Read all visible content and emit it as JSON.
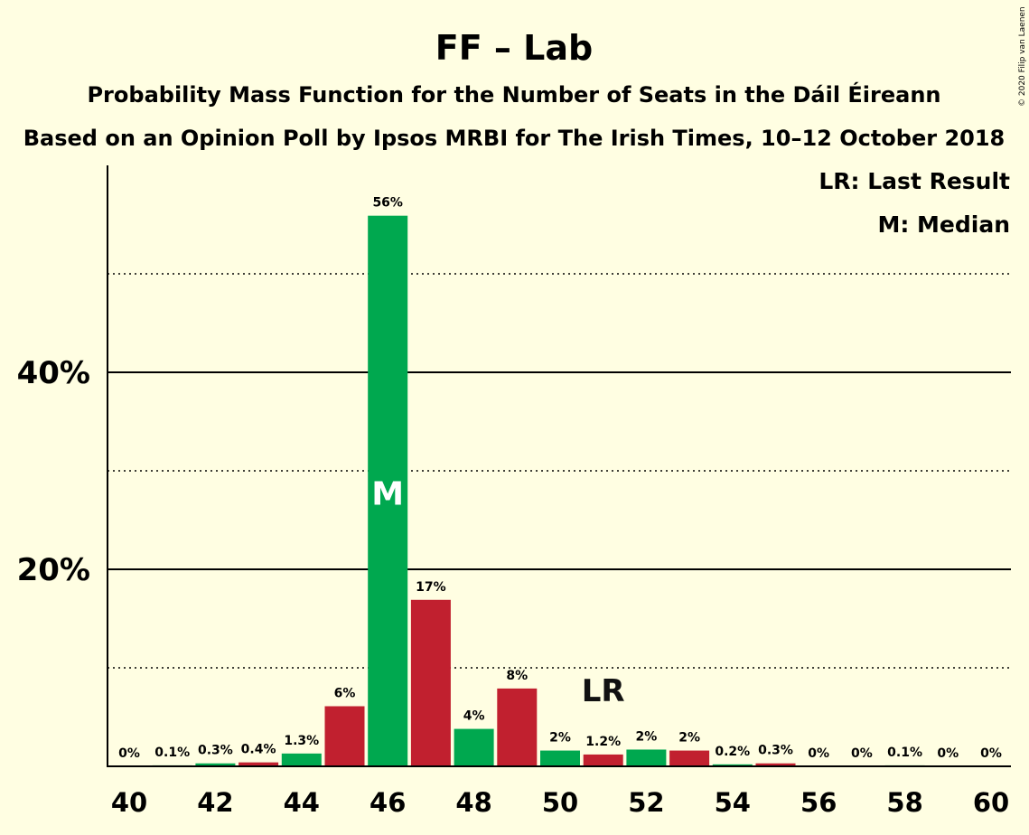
{
  "colors": {
    "background": "#FFFEE2",
    "green": "#00A84F",
    "red": "#C1202F",
    "axis": "#000000"
  },
  "header": {
    "title": "FF – Lab",
    "subtitle1": "Probability Mass Function for the Number of Seats in the Dáil Éireann",
    "subtitle2": "Based on an Opinion Poll by Ipsos MRBI for The Irish Times, 10–12 October 2018"
  },
  "legend": {
    "last_result": "LR: Last Result",
    "median": "M: Median"
  },
  "copyright": "© 2020 Filip van Laenen",
  "chart_data": {
    "type": "bar",
    "x": [
      40,
      41,
      42,
      43,
      44,
      45,
      46,
      47,
      48,
      49,
      50,
      51,
      52,
      53,
      54,
      55,
      56,
      57,
      58,
      59,
      60
    ],
    "values": [
      0,
      0.1,
      0.3,
      0.4,
      1.3,
      6,
      56,
      17,
      4,
      8,
      2,
      1.2,
      2,
      2,
      0.2,
      0.3,
      0,
      0,
      0.1,
      0,
      0
    ],
    "plot_values": [
      0,
      0.1,
      0.3,
      0.4,
      1.3,
      6.1,
      55.9,
      16.9,
      3.8,
      7.9,
      1.6,
      1.2,
      1.7,
      1.6,
      0.2,
      0.3,
      0,
      0,
      0.1,
      0,
      0
    ],
    "labels": [
      "0%",
      "0.1%",
      "0.3%",
      "0.4%",
      "1.3%",
      "6%",
      "56%",
      "17%",
      "4%",
      "8%",
      "2%",
      "1.2%",
      "2%",
      "2%",
      "0.2%",
      "0.3%",
      "0%",
      "0%",
      "0.1%",
      "0%",
      "0%"
    ],
    "bar_colors": [
      "green",
      "green",
      "green",
      "red",
      "green",
      "red",
      "green",
      "red",
      "green",
      "red",
      "green",
      "red",
      "green",
      "red",
      "green",
      "red",
      "green",
      "red",
      "green",
      "red",
      "green"
    ],
    "x_tick_values": [
      40,
      42,
      44,
      46,
      48,
      50,
      52,
      54,
      56,
      58,
      60
    ],
    "y_ticks": [
      {
        "value": 20,
        "label": "20%"
      },
      {
        "value": 40,
        "label": "40%"
      }
    ],
    "y_minor_gridlines": [
      10,
      30,
      50
    ],
    "ylim": [
      0,
      61
    ],
    "median": {
      "x": 46,
      "label": "M"
    },
    "last_result": {
      "x": 51,
      "label": "LR"
    },
    "unit": "%"
  }
}
